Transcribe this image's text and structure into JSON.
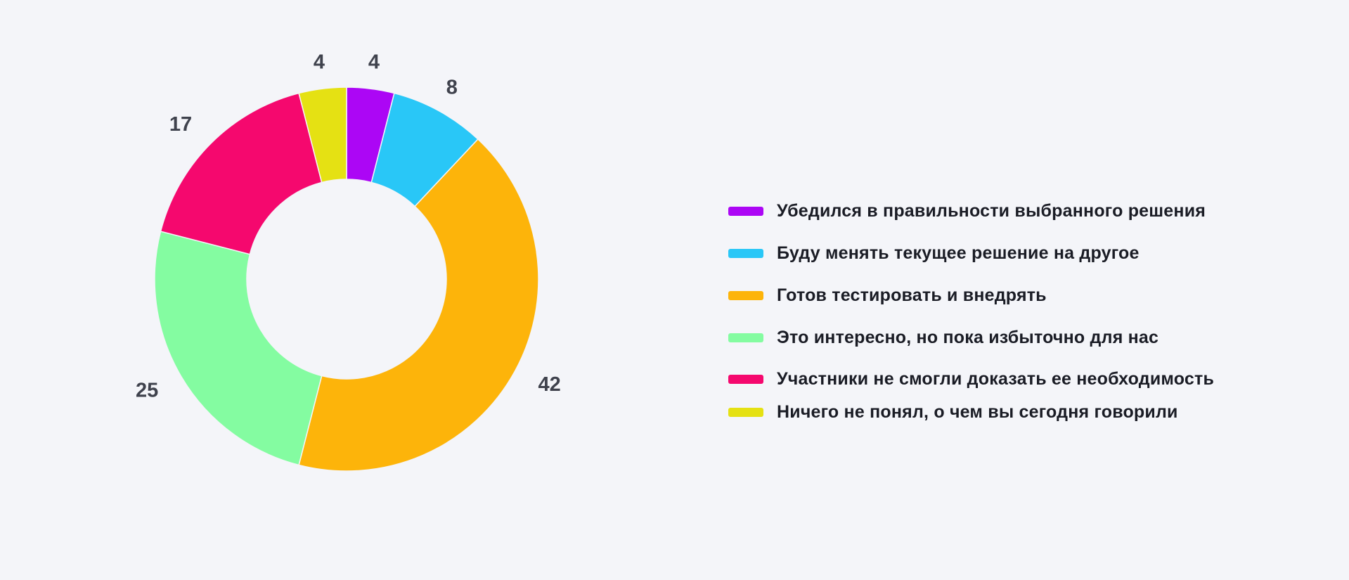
{
  "colors": {
    "background": "#F4F5F9",
    "value_label_text": "#3F424D",
    "legend_text": "#1A1C25"
  },
  "chart_data": {
    "type": "pie",
    "subtype": "donut",
    "title": "",
    "legend_position": "right",
    "value_labels_position": "outside",
    "start_angle_deg": 0,
    "direction": "clockwise",
    "donut_hole_ratio": 0.52,
    "total": 100,
    "slices": [
      {
        "label": "Убедился в правильности выбранного решения",
        "value": 4,
        "color": "#AC06F5"
      },
      {
        "label": "Буду менять текущее решение на другое",
        "value": 8,
        "color": "#29C7F7"
      },
      {
        "label": "Готов тестировать и внедрять",
        "value": 42,
        "color": "#FDB40A"
      },
      {
        "label": "Это интересно, но пока избыточно для нас",
        "value": 25,
        "color": "#84FCA1"
      },
      {
        "label": "Участники не смогли доказать ее необходимость",
        "value": 17,
        "color": "#F5086E"
      },
      {
        "label": "Ничего не понял, о чем вы сегодня говорили",
        "value": 4,
        "color": "#E5E113"
      }
    ]
  }
}
